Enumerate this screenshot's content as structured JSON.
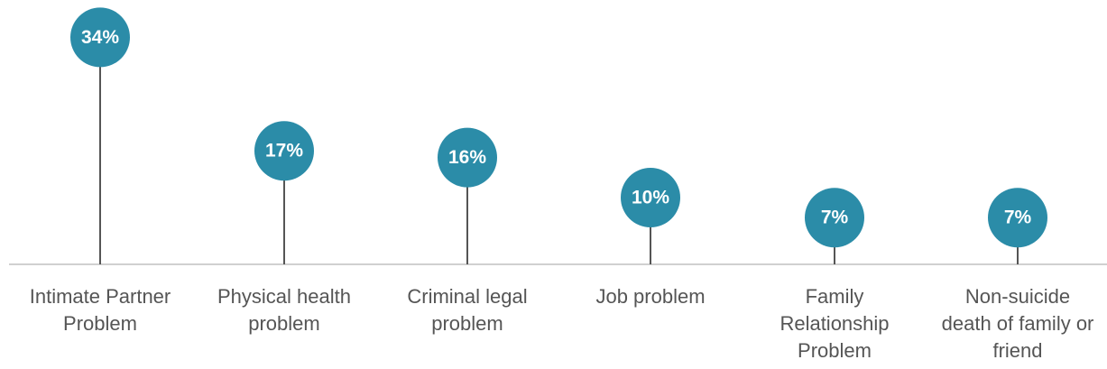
{
  "chart_data": {
    "type": "lollipop",
    "categories": [
      "Intimate Partner Problem",
      "Physical health problem",
      "Criminal legal problem",
      "Job problem",
      "Family Relationship Problem",
      "Non-suicide death of family or friend"
    ],
    "values": [
      34,
      17,
      16,
      10,
      7,
      7
    ],
    "value_labels": [
      "34%",
      "17%",
      "16%",
      "10%",
      "7%",
      "7%"
    ],
    "color": "#2b8ca8"
  }
}
